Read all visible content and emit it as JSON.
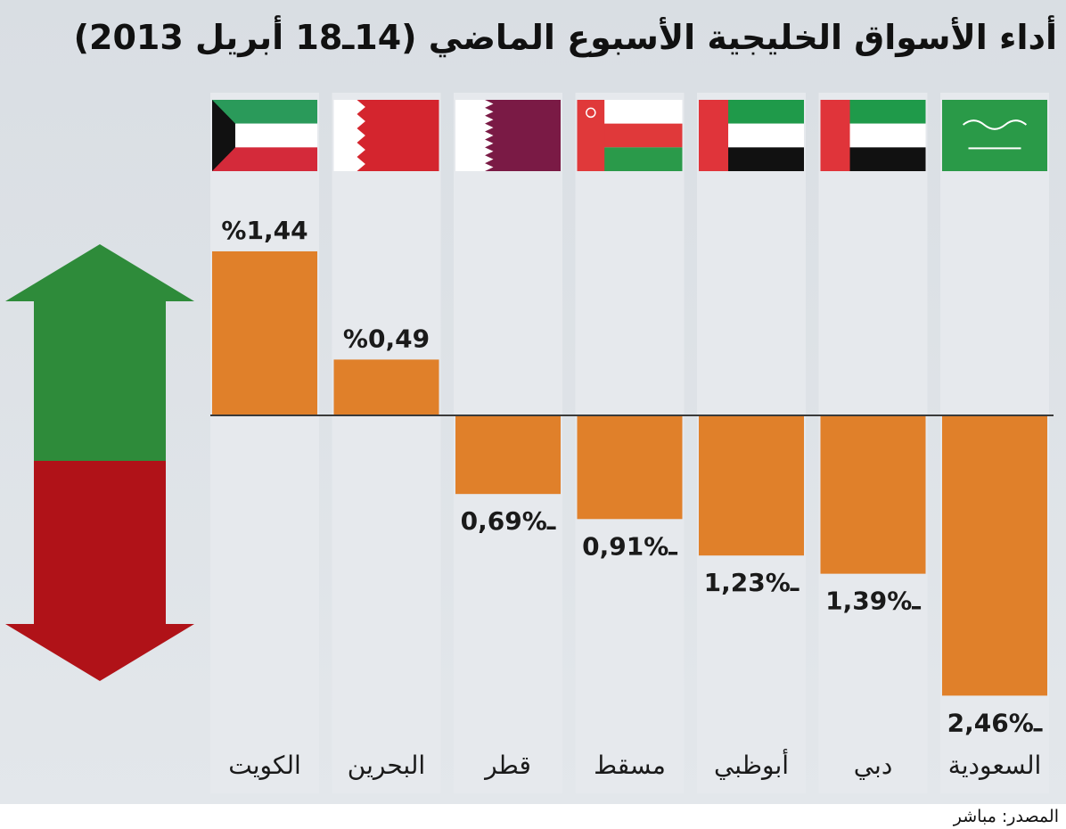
{
  "title": "أداء الأسواق الخليجية الأسبوع الماضي (14ـ18 أبريل 2013)",
  "source": "المصدر: مباشر",
  "colors": {
    "bar": "#e0802a",
    "up_arrow": "#2e8b3a",
    "down_arrow": "#b01218",
    "column_bg": "#e6e9ed",
    "baseline": "#3a3a3a"
  },
  "chart_data": {
    "type": "bar",
    "categories": [
      "الكويت",
      "البحرين",
      "قطر",
      "مسقط",
      "أبوظبي",
      "دبي",
      "السعودية"
    ],
    "values": [
      1.44,
      0.49,
      -0.69,
      -0.91,
      -1.23,
      -1.39,
      -2.46
    ],
    "value_labels": [
      "%1,44",
      "%0,49",
      "ـ%0,69",
      "ـ%0,91",
      "ـ%1,23",
      "ـ%1,39",
      "ـ%2,46"
    ],
    "flags": [
      "kuwait-flag-icon",
      "bahrain-flag-icon",
      "qatar-flag-icon",
      "oman-flag-icon",
      "uae-flag-icon",
      "uae-flag-icon",
      "saudi-flag-icon"
    ],
    "ylim": [
      -2.7,
      1.55
    ],
    "grid": false,
    "legend": "up-green / down-red arrow at left"
  }
}
